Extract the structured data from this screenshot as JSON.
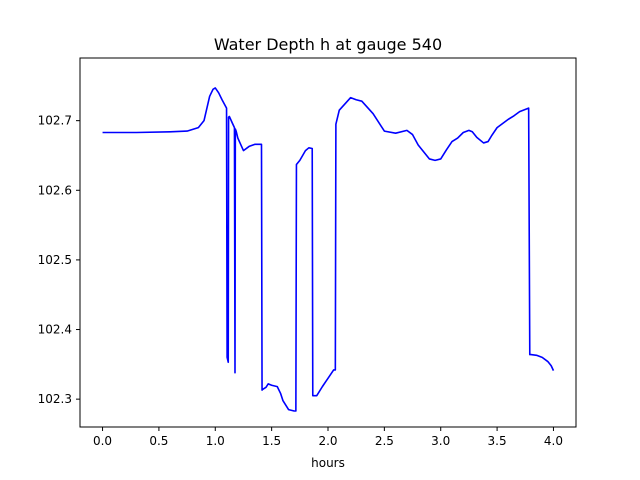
{
  "chart_data": {
    "type": "line",
    "title": "Water Depth h at gauge 540",
    "xlabel": "hours",
    "ylabel": "",
    "xlim": [
      -0.2,
      4.2
    ],
    "ylim": [
      102.26,
      102.79
    ],
    "xticks": [
      0.0,
      0.5,
      1.0,
      1.5,
      2.0,
      2.5,
      3.0,
      3.5,
      4.0
    ],
    "xtick_labels": [
      "0.0",
      "0.5",
      "1.0",
      "1.5",
      "2.0",
      "2.5",
      "3.0",
      "3.5",
      "4.0"
    ],
    "yticks": [
      102.3,
      102.4,
      102.5,
      102.6,
      102.7
    ],
    "ytick_labels": [
      "102.3",
      "102.4",
      "102.5",
      "102.6",
      "102.7"
    ],
    "grid": false,
    "series": [
      {
        "color": "#0000ff",
        "x": [
          0.0,
          0.3,
          0.6,
          0.75,
          0.85,
          0.9,
          0.95,
          0.98,
          1.0,
          1.03,
          1.06,
          1.1,
          1.105,
          1.115,
          1.118,
          1.125,
          1.15,
          1.17,
          1.175,
          1.178,
          1.185,
          1.2,
          1.25,
          1.3,
          1.35,
          1.41,
          1.415,
          1.42,
          1.45,
          1.47,
          1.5,
          1.55,
          1.58,
          1.6,
          1.65,
          1.7,
          1.715,
          1.72,
          1.75,
          1.8,
          1.83,
          1.86,
          1.865,
          1.87,
          1.9,
          1.95,
          2.0,
          2.05,
          2.065,
          2.07,
          2.1,
          2.15,
          2.2,
          2.25,
          2.3,
          2.4,
          2.5,
          2.6,
          2.7,
          2.75,
          2.8,
          2.9,
          2.95,
          3.0,
          3.05,
          3.1,
          3.15,
          3.2,
          3.25,
          3.28,
          3.32,
          3.38,
          3.42,
          3.45,
          3.5,
          3.6,
          3.65,
          3.7,
          3.78,
          3.79,
          3.8,
          3.85,
          3.9,
          3.95,
          3.98,
          4.0
        ],
        "y": [
          102.683,
          102.683,
          102.684,
          102.685,
          102.69,
          102.7,
          102.735,
          102.745,
          102.747,
          102.74,
          102.73,
          102.718,
          102.36,
          102.353,
          102.705,
          102.706,
          102.697,
          102.69,
          102.338,
          102.688,
          102.685,
          102.675,
          102.657,
          102.663,
          102.666,
          102.666,
          102.313,
          102.314,
          102.317,
          102.322,
          102.32,
          102.318,
          102.308,
          102.298,
          102.285,
          102.283,
          102.283,
          102.637,
          102.643,
          102.657,
          102.661,
          102.66,
          102.305,
          102.305,
          102.305,
          102.318,
          102.33,
          102.342,
          102.342,
          102.695,
          102.715,
          102.724,
          102.733,
          102.73,
          102.728,
          102.71,
          102.685,
          102.682,
          102.686,
          102.68,
          102.665,
          102.645,
          102.643,
          102.645,
          102.658,
          102.67,
          102.675,
          102.683,
          102.686,
          102.684,
          102.676,
          102.668,
          102.67,
          102.678,
          102.69,
          102.702,
          102.707,
          102.713,
          102.718,
          102.364,
          102.364,
          102.363,
          102.36,
          102.354,
          102.348,
          102.341
        ]
      }
    ]
  }
}
